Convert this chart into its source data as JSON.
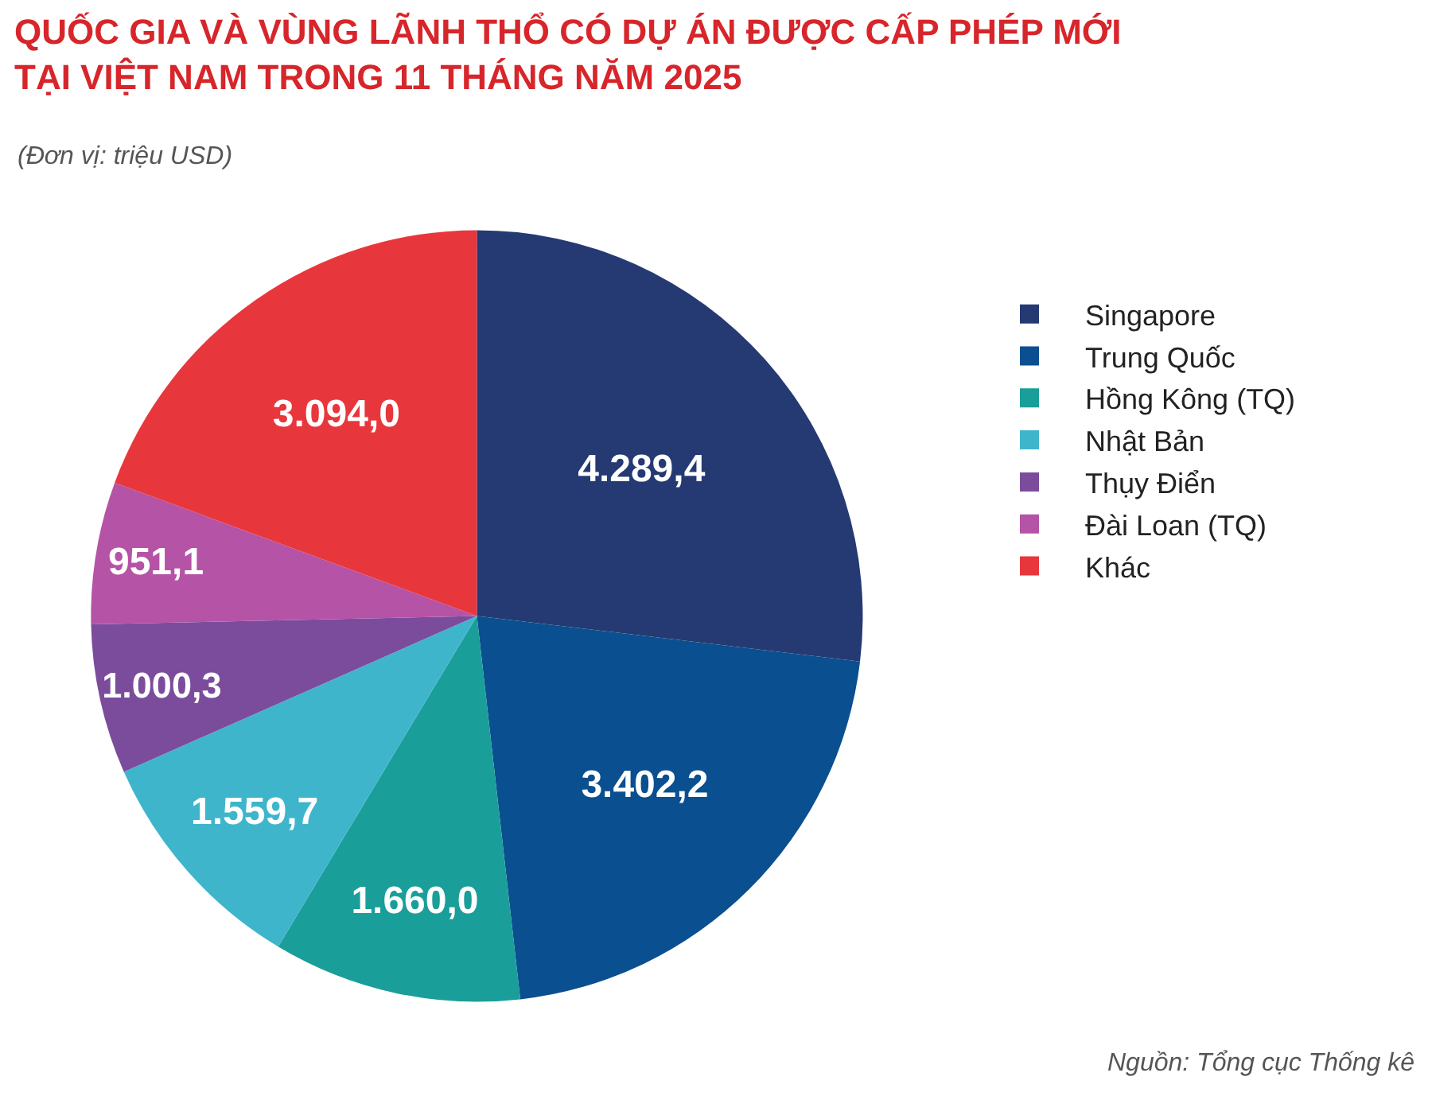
{
  "chart_data": {
    "type": "pie",
    "title": "QUỐC GIA VÀ VÙNG LÃNH THỔ CÓ DỰ ÁN ĐƯỢC CẤP PHÉP MỚI\nTẠI VIỆT NAM TRONG 11 THÁNG NĂM 2025",
    "subtitle": "(Đơn vị: triệu USD)",
    "categories": [
      "Singapore",
      "Trung Quốc",
      "Hồng Kông (TQ)",
      "Nhật Bản",
      "Thụy Điển",
      "Đài Loan (TQ)",
      "Khác"
    ],
    "values": [
      4289.4,
      3402.2,
      1660.0,
      1559.7,
      1000.3,
      951.1,
      3094.0
    ],
    "value_labels": [
      "4.289,4",
      "3.402,2",
      "1.660,0",
      "1.559,7",
      "1.000,3",
      "951,1",
      "3.094,0"
    ],
    "colors": [
      "#253a73",
      "#0a4f8f",
      "#1a9e9a",
      "#3fb5cc",
      "#7b4c9c",
      "#b553a6",
      "#e8373c"
    ],
    "legend": "right",
    "annotations": [
      "Nguồn: Tổng cục Thống kê"
    ]
  }
}
